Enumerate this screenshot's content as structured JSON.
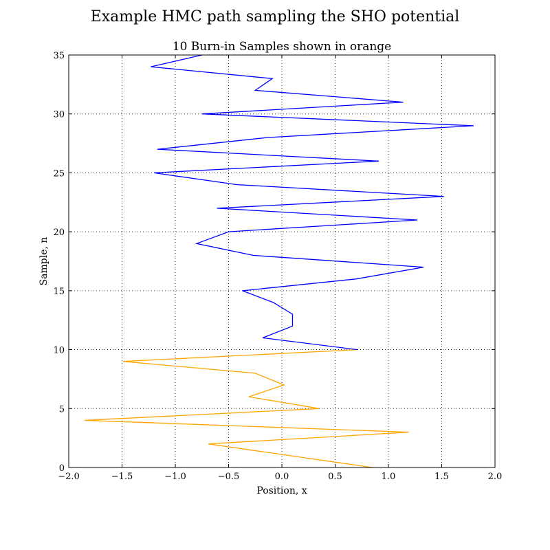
{
  "chart_data": {
    "type": "line",
    "title": "Example HMC path sampling the SHO potential",
    "subtitle": "10 Burn-in Samples shown in orange",
    "xlabel": "Position, x",
    "ylabel": "Sample, n",
    "xlim": [
      -2.0,
      2.0
    ],
    "ylim": [
      0,
      35
    ],
    "x_ticks": [
      "−2.0",
      "−1.5",
      "−1.0",
      "−0.5",
      "0.0",
      "0.5",
      "1.0",
      "1.5",
      "2.0"
    ],
    "y_ticks": [
      "0",
      "5",
      "10",
      "15",
      "20",
      "25",
      "30",
      "35"
    ],
    "grid": true,
    "orientation": "position on x-axis, sample index on y-axis",
    "series": [
      {
        "color": "#ffa500",
        "points": [
          [
            0.85,
            0
          ],
          [
            -0.69,
            2
          ],
          [
            1.19,
            3
          ],
          [
            -1.85,
            4
          ],
          [
            0.35,
            5
          ],
          [
            -0.31,
            6
          ],
          [
            0.02,
            7
          ],
          [
            -0.25,
            8
          ],
          [
            -1.49,
            9
          ],
          [
            0.71,
            10
          ]
        ]
      },
      {
        "color": "#0000ff",
        "points": [
          [
            0.71,
            10
          ],
          [
            -0.18,
            11
          ],
          [
            0.1,
            12
          ],
          [
            0.1,
            13
          ],
          [
            -0.08,
            14
          ],
          [
            -0.37,
            15
          ],
          [
            0.7,
            16
          ],
          [
            1.33,
            17
          ],
          [
            -0.27,
            18
          ],
          [
            -0.8,
            19
          ],
          [
            -0.5,
            20
          ],
          [
            1.27,
            21
          ],
          [
            -0.61,
            22
          ],
          [
            1.52,
            23
          ],
          [
            -0.42,
            24
          ],
          [
            -1.2,
            25
          ],
          [
            0.91,
            26
          ],
          [
            -1.17,
            27
          ],
          [
            -0.13,
            28
          ],
          [
            1.8,
            29
          ],
          [
            -0.75,
            30
          ],
          [
            1.14,
            31
          ],
          [
            -0.25,
            32
          ],
          [
            -0.09,
            33
          ],
          [
            -1.23,
            34
          ],
          [
            -0.75,
            35
          ]
        ]
      }
    ]
  }
}
